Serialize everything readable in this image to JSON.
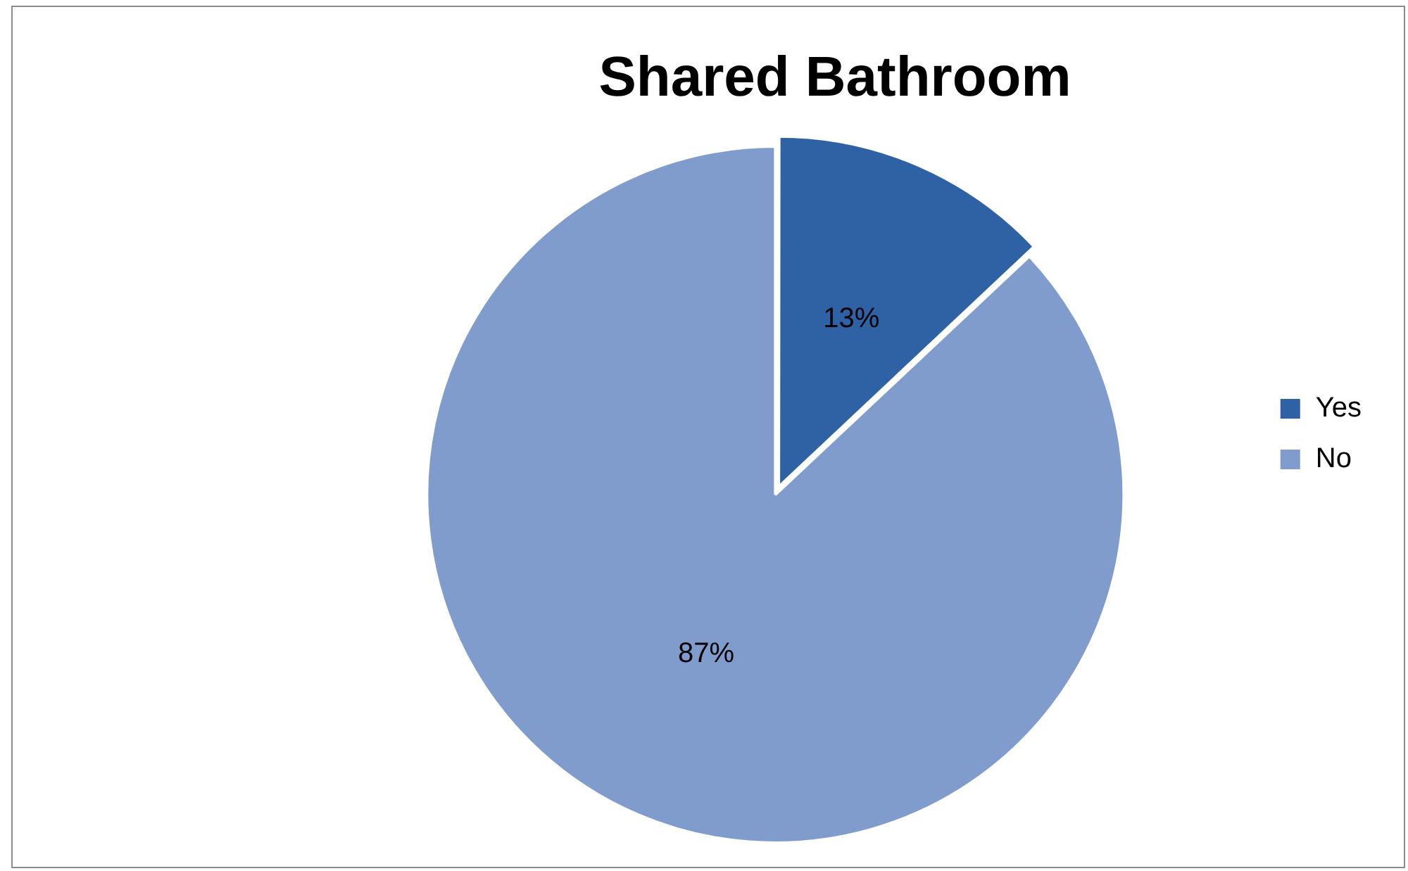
{
  "chart_data": {
    "type": "pie",
    "title": "Shared Bathroom",
    "categories": [
      "Yes",
      "No"
    ],
    "values": [
      13,
      87
    ],
    "colors": [
      "#2e62a5",
      "#7f9ccc"
    ],
    "value_labels": [
      "13%",
      "87%"
    ],
    "legend": "right"
  }
}
